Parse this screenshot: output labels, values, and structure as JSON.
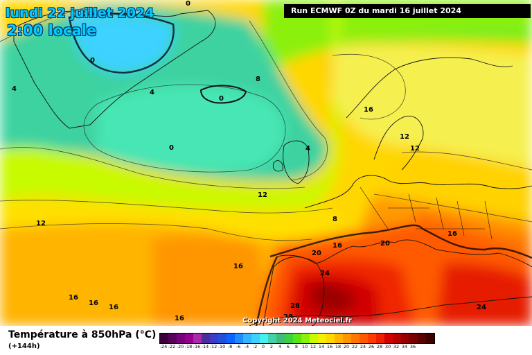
{
  "title": {
    "date": "lundi 22 juillet 2024",
    "time": "2:00 locale"
  },
  "run": "Run ECMWF 0Z du mardi 16 juillet 2024",
  "copyright": "Copyright 2024 Meteociel.fr",
  "parameter": "Température à 850hPa (°C)",
  "lead": "(+144h)",
  "legend": {
    "colors": [
      "#3a003a",
      "#5a005a",
      "#780078",
      "#96008c",
      "#aa2aaa",
      "#4b2d9b",
      "#3c3cc8",
      "#1e50dc",
      "#0a64ff",
      "#1e8cff",
      "#32b4ff",
      "#3cd2ff",
      "#46f0f0",
      "#41d2aa",
      "#3cbe78",
      "#3cd23c",
      "#5ae614",
      "#8cf00a",
      "#c8fa00",
      "#f0f000",
      "#ffd700",
      "#ffb400",
      "#ff9600",
      "#ff7800",
      "#ff5a00",
      "#ff3c00",
      "#f01e00",
      "#d20000",
      "#b40000",
      "#960000",
      "#780000",
      "#5a0000",
      "#3c0000"
    ],
    "ticks": [
      "-24",
      "-22",
      "-20",
      "-18",
      "-16",
      "-14",
      "-12",
      "-10",
      "-8",
      "-6",
      "-4",
      "-2",
      "0",
      "2",
      "4",
      "6",
      "8",
      "10",
      "12",
      "14",
      "16",
      "18",
      "20",
      "22",
      "24",
      "26",
      "28",
      "30",
      "32",
      "34",
      "36"
    ]
  },
  "map_labels": [
    "0",
    "0",
    "4",
    "4",
    "8",
    "0",
    "0",
    "4",
    "12",
    "12",
    "16",
    "12",
    "12",
    "8",
    "16",
    "20",
    "20",
    "24",
    "16",
    "16",
    "16",
    "16",
    "16",
    "16",
    "28",
    "28",
    "24"
  ]
}
